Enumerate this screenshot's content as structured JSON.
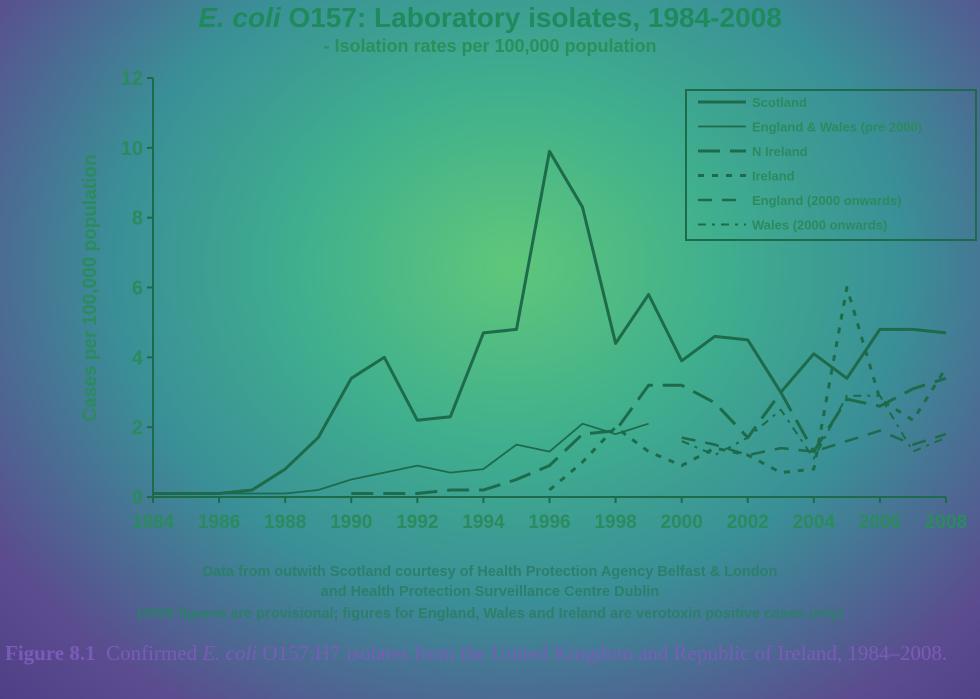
{
  "figure": {
    "label": "Figure 8.1",
    "caption_part1": "Confirmed",
    "caption_italic": "E. coli",
    "caption_part2": "O157:H7 isolates from the United Kingdom and Republic of Ireland, 1984–2008."
  },
  "notes": [
    "Data from outwith Scotland courtesy of Health Protection Agency Belfast & London",
    "and Health Protection Surveillance Centre Dublin",
    "(2008 figures are provisional; figures for England, Wales and Ireland are verotoxin positive cases only)"
  ],
  "chart_data": {
    "type": "line",
    "title_italic": "E. coli",
    "title_rest": "O157: Laboratory isolates, 1984-2008",
    "subtitle": "- Isolation rates per 100,000 population",
    "xlabel": "",
    "ylabel": "Cases per 100,000 population",
    "xlim": [
      1984,
      2008
    ],
    "ylim": [
      0,
      12
    ],
    "xticks": [
      1984,
      1986,
      1988,
      1990,
      1992,
      1994,
      1996,
      1998,
      2000,
      2002,
      2004,
      2006,
      2008
    ],
    "yticks": [
      0,
      2,
      4,
      6,
      8,
      10,
      12
    ],
    "legend_position": "top-right",
    "colors": {
      "lines": "#1d6b4a",
      "axes": "#1d6b4a",
      "ticks": "#2b8a5e"
    },
    "series": [
      {
        "name": "Scotland",
        "style": "solid-thick",
        "x": [
          1984,
          1985,
          1986,
          1987,
          1988,
          1989,
          1990,
          1991,
          1992,
          1993,
          1994,
          1995,
          1996,
          1997,
          1998,
          1999,
          2000,
          2001,
          2002,
          2003,
          2004,
          2005,
          2006,
          2007,
          2008
        ],
        "values": [
          0.1,
          0.1,
          0.1,
          0.2,
          0.8,
          1.7,
          3.4,
          4.0,
          2.2,
          2.3,
          4.7,
          4.8,
          9.9,
          8.3,
          4.4,
          5.8,
          3.9,
          4.6,
          4.5,
          3.0,
          4.1,
          3.4,
          4.8,
          4.8,
          4.7
        ]
      },
      {
        "name": "England & Wales (pre 2000)",
        "style": "solid-thin",
        "x": [
          1984,
          1985,
          1986,
          1987,
          1988,
          1989,
          1990,
          1991,
          1992,
          1993,
          1994,
          1995,
          1996,
          1997,
          1998,
          1999
        ],
        "values": [
          0.1,
          0.1,
          0.1,
          0.1,
          0.1,
          0.2,
          0.5,
          0.7,
          0.9,
          0.7,
          0.8,
          1.5,
          1.3,
          2.1,
          1.8,
          2.1
        ]
      },
      {
        "name": "N Ireland",
        "style": "long-dash",
        "x": [
          1990,
          1991,
          1992,
          1993,
          1994,
          1995,
          1996,
          1997,
          1998,
          1999,
          2000,
          2001,
          2002,
          2003,
          2004,
          2005,
          2006,
          2007,
          2008
        ],
        "values": [
          0.1,
          0.1,
          0.1,
          0.2,
          0.2,
          0.5,
          0.9,
          1.8,
          1.9,
          3.2,
          3.2,
          2.7,
          1.7,
          3.0,
          1.3,
          2.8,
          2.6,
          3.1,
          3.4
        ]
      },
      {
        "name": "Ireland",
        "style": "short-dash",
        "x": [
          1996,
          1997,
          1998,
          1999,
          2000,
          2001,
          2002,
          2003,
          2004,
          2005,
          2006,
          2007,
          2008
        ],
        "values": [
          0.2,
          1.0,
          2.0,
          1.3,
          0.9,
          1.4,
          1.2,
          0.7,
          0.8,
          6.0,
          2.8,
          2.2,
          3.7
        ]
      },
      {
        "name": "England (2000 onwards)",
        "style": "dash-thin",
        "x": [
          2000,
          2001,
          2002,
          2003,
          2004,
          2005,
          2006,
          2007,
          2008
        ],
        "values": [
          1.7,
          1.5,
          1.2,
          1.4,
          1.3,
          1.6,
          1.9,
          1.5,
          1.8
        ]
      },
      {
        "name": "Wales (2000 onwards)",
        "style": "dash-dot",
        "x": [
          2000,
          2001,
          2002,
          2003,
          2004,
          2005,
          2006,
          2007,
          2008
        ],
        "values": [
          1.6,
          1.2,
          1.7,
          2.5,
          1.1,
          2.9,
          2.9,
          1.3,
          1.7
        ]
      }
    ]
  }
}
